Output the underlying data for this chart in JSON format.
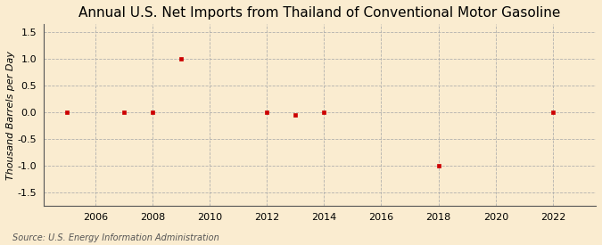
{
  "title": "Annual U.S. Net Imports from Thailand of Conventional Motor Gasoline",
  "ylabel": "Thousand Barrels per Day",
  "source": "Source: U.S. Energy Information Administration",
  "background_color": "#faecd0",
  "years": [
    2005,
    2007,
    2008,
    2009,
    2012,
    2013,
    2014,
    2018,
    2022
  ],
  "values": [
    0,
    0,
    0,
    1.0,
    0,
    -0.04,
    0,
    -1.0,
    0
  ],
  "marker_color": "#cc0000",
  "xlim": [
    2004.2,
    2023.5
  ],
  "ylim": [
    -1.75,
    1.65
  ],
  "yticks": [
    -1.5,
    -1.0,
    -0.5,
    0.0,
    0.5,
    1.0,
    1.5
  ],
  "xticks": [
    2006,
    2008,
    2010,
    2012,
    2014,
    2016,
    2018,
    2020,
    2022
  ],
  "title_fontsize": 11,
  "label_fontsize": 8,
  "tick_fontsize": 8,
  "source_fontsize": 7
}
